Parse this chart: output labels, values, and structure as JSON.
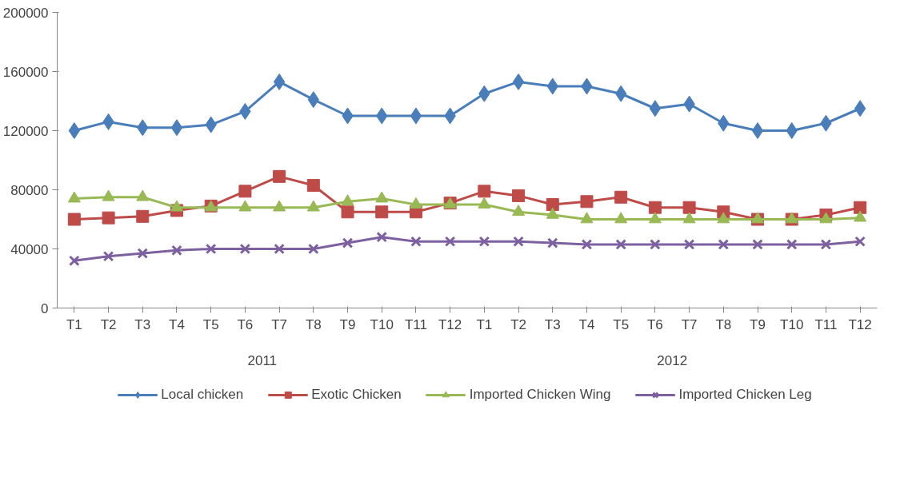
{
  "chart_data": {
    "type": "line",
    "categories": [
      "T1",
      "T2",
      "T3",
      "T4",
      "T5",
      "T6",
      "T7",
      "T8",
      "T9",
      "T10",
      "T11",
      "T12",
      "T1",
      "T2",
      "T3",
      "T4",
      "T5",
      "T6",
      "T7",
      "T8",
      "T9",
      "T10",
      "T11",
      "T12"
    ],
    "annotations": [
      "2011",
      "2012"
    ],
    "ylim": [
      0,
      200000
    ],
    "yticks": [
      0,
      40000,
      80000,
      120000,
      160000,
      200000
    ],
    "grid": false,
    "legend": "bottom",
    "series": [
      {
        "name": "Local chicken",
        "color": "#4a7ebb",
        "marker": "diamond",
        "values": [
          120000,
          126000,
          122000,
          122000,
          124000,
          133000,
          153000,
          141000,
          130000,
          130000,
          130000,
          130000,
          145000,
          153000,
          150000,
          150000,
          145000,
          135000,
          138000,
          125000,
          120000,
          120000,
          125000,
          135000
        ]
      },
      {
        "name": "Exotic Chicken",
        "color": "#be4b48",
        "marker": "square",
        "values": [
          60000,
          61000,
          62000,
          66000,
          69000,
          79000,
          89000,
          83000,
          65000,
          65000,
          65000,
          71000,
          79000,
          76000,
          70000,
          72000,
          75000,
          68000,
          68000,
          65000,
          60000,
          60000,
          63000,
          68000
        ]
      },
      {
        "name": "Imported Chicken Wing",
        "color": "#98b954",
        "marker": "triangle",
        "values": [
          74000,
          75000,
          75000,
          68000,
          68000,
          68000,
          68000,
          68000,
          72000,
          74000,
          70000,
          70000,
          70000,
          65000,
          63000,
          60000,
          60000,
          60000,
          60000,
          60000,
          60000,
          60000,
          60000,
          61000
        ]
      },
      {
        "name": "Imported Chicken Leg",
        "color": "#7d60a0",
        "marker": "cross",
        "values": [
          32000,
          35000,
          37000,
          39000,
          40000,
          40000,
          40000,
          40000,
          44000,
          48000,
          45000,
          45000,
          45000,
          45000,
          44000,
          43000,
          43000,
          43000,
          43000,
          43000,
          43000,
          43000,
          43000,
          45000
        ]
      }
    ]
  }
}
